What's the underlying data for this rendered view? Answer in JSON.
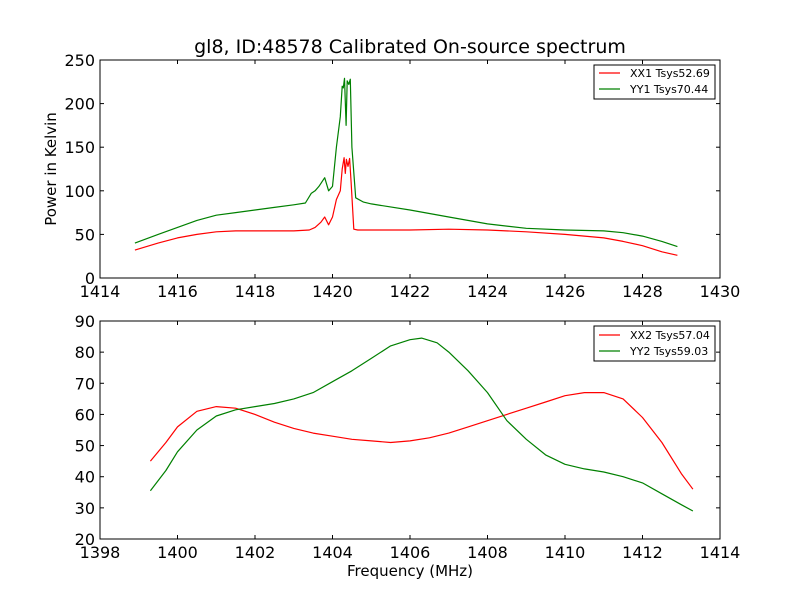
{
  "chart_data": [
    {
      "type": "line",
      "title": "gl8, ID:48578 Calibrated On-source spectrum",
      "xlabel": "",
      "ylabel": "Power in Kelvin",
      "xlim": [
        1414,
        1430
      ],
      "ylim": [
        0,
        250
      ],
      "xticks": [
        1414,
        1416,
        1418,
        1420,
        1422,
        1424,
        1426,
        1428,
        1430
      ],
      "yticks": [
        0,
        50,
        100,
        150,
        200,
        250
      ],
      "grid": false,
      "legend_position": "top-right",
      "series": [
        {
          "name": "XX1 Tsys52.69",
          "color": "#ff0000",
          "x": [
            1414.9,
            1415.5,
            1416.0,
            1416.5,
            1417.0,
            1417.5,
            1418.0,
            1418.5,
            1419.0,
            1419.4,
            1419.55,
            1419.7,
            1419.8,
            1419.9,
            1420.0,
            1420.1,
            1420.2,
            1420.25,
            1420.3,
            1420.33,
            1420.36,
            1420.4,
            1420.44,
            1420.48,
            1420.55,
            1420.65,
            1421.0,
            1422.0,
            1423.0,
            1424.0,
            1425.0,
            1426.0,
            1427.0,
            1427.5,
            1428.0,
            1428.5,
            1428.9
          ],
          "y": [
            32,
            40,
            46,
            50,
            53,
            54,
            54,
            54,
            54,
            55,
            58,
            64,
            70,
            61,
            70,
            90,
            100,
            125,
            138,
            120,
            136,
            128,
            137,
            110,
            56,
            55,
            55,
            55,
            56,
            55,
            53,
            50,
            46,
            42,
            37,
            30,
            26
          ]
        },
        {
          "name": "YY1 Tsys70.44",
          "color": "#008000",
          "x": [
            1414.9,
            1415.5,
            1416.0,
            1416.5,
            1417.0,
            1417.5,
            1418.0,
            1418.5,
            1419.0,
            1419.3,
            1419.45,
            1419.55,
            1419.65,
            1419.8,
            1419.9,
            1420.0,
            1420.1,
            1420.2,
            1420.25,
            1420.28,
            1420.31,
            1420.35,
            1420.38,
            1420.42,
            1420.46,
            1420.5,
            1420.6,
            1420.8,
            1421.0,
            1422.0,
            1423.0,
            1424.0,
            1425.0,
            1426.0,
            1427.0,
            1427.5,
            1428.0,
            1428.5,
            1428.9
          ],
          "y": [
            40,
            50,
            58,
            66,
            72,
            75,
            78,
            81,
            84,
            86,
            97,
            100,
            105,
            115,
            100,
            105,
            150,
            185,
            220,
            218,
            229,
            175,
            226,
            222,
            228,
            150,
            92,
            87,
            85,
            78,
            70,
            62,
            57,
            55,
            54,
            52,
            48,
            42,
            36
          ]
        }
      ]
    },
    {
      "type": "line",
      "title": "",
      "xlabel": "Frequency (MHz)",
      "ylabel": "",
      "xlim": [
        1398,
        1414
      ],
      "ylim": [
        20,
        90
      ],
      "xticks": [
        1398,
        1400,
        1402,
        1404,
        1406,
        1408,
        1410,
        1412,
        1414
      ],
      "yticks": [
        20,
        30,
        40,
        50,
        60,
        70,
        80,
        90
      ],
      "grid": false,
      "legend_position": "top-right",
      "series": [
        {
          "name": "XX2 Tsys57.04",
          "color": "#ff0000",
          "x": [
            1399.3,
            1399.7,
            1400.0,
            1400.5,
            1401.0,
            1401.5,
            1402.0,
            1402.5,
            1403.0,
            1403.5,
            1404.0,
            1404.5,
            1405.0,
            1405.5,
            1406.0,
            1406.5,
            1407.0,
            1407.5,
            1408.0,
            1408.5,
            1409.0,
            1409.5,
            1410.0,
            1410.5,
            1411.0,
            1411.5,
            1412.0,
            1412.5,
            1413.0,
            1413.3
          ],
          "y": [
            45,
            51,
            56,
            61,
            62.5,
            62,
            60,
            57.5,
            55.5,
            54,
            53,
            52,
            51.5,
            51,
            51.5,
            52.5,
            54,
            56,
            58,
            60,
            62,
            64,
            66,
            67,
            67,
            65,
            59,
            51,
            41,
            36
          ]
        },
        {
          "name": "YY2 Tsys59.03",
          "color": "#008000",
          "x": [
            1399.3,
            1399.7,
            1400.0,
            1400.5,
            1401.0,
            1401.5,
            1402.0,
            1402.5,
            1403.0,
            1403.5,
            1404.0,
            1404.5,
            1405.0,
            1405.5,
            1406.0,
            1406.3,
            1406.7,
            1407.0,
            1407.5,
            1408.0,
            1408.5,
            1409.0,
            1409.5,
            1410.0,
            1410.5,
            1411.0,
            1411.5,
            1412.0,
            1412.5,
            1413.0,
            1413.3
          ],
          "y": [
            35.5,
            42,
            48,
            55,
            59.5,
            61.5,
            62.5,
            63.5,
            65,
            67,
            70.5,
            74,
            78,
            82,
            84,
            84.5,
            83,
            80,
            74,
            67,
            58,
            52,
            47,
            44,
            42.5,
            41.5,
            40,
            38,
            34.5,
            31,
            29
          ]
        }
      ]
    }
  ]
}
